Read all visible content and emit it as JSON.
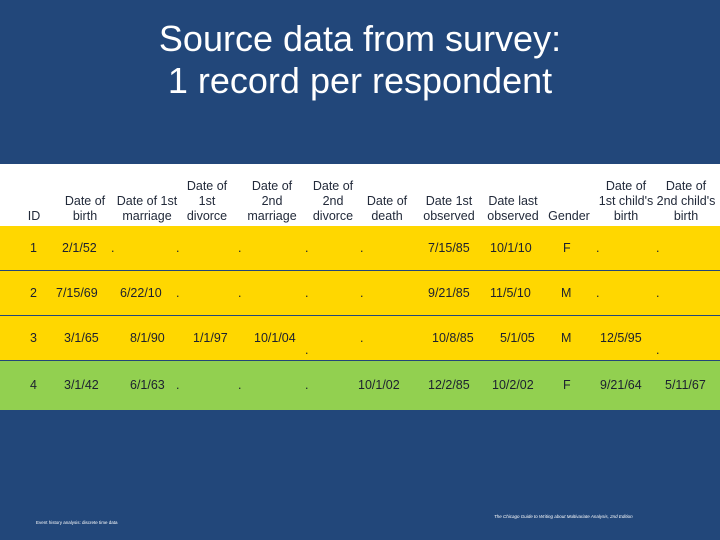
{
  "title": {
    "line1": "Source data from survey:",
    "line2": "1 record per respondent"
  },
  "table": {
    "headers": [
      "ID",
      "Date of\nbirth",
      "Date of 1st\nmarriage",
      "Date of\n1st\ndivorce",
      "Date of\n2nd\nmarriage",
      "Date of\n2nd\ndivorce",
      "Date of\ndeath",
      "Date 1st\nobserved",
      "Date last\nobserved",
      "Gender",
      "Date of\n1st child's\nbirth",
      "Date of\n2nd child's\nbirth"
    ],
    "rows": [
      [
        "1",
        "2/1/52",
        ".",
        ".",
        ".",
        ".",
        ".",
        "7/15/85",
        "10/1/10",
        "F",
        ".",
        "."
      ],
      [
        "2",
        "7/15/69",
        "6/22/10",
        ".",
        ".",
        ".",
        ".",
        "9/21/85",
        "11/5/10",
        "M",
        ".",
        "."
      ],
      [
        "3",
        "3/1/65",
        "8/1/90",
        "1/1/97",
        "10/1/04",
        ".",
        ".",
        "10/8/85",
        "5/1/05",
        "M",
        "12/5/95",
        "."
      ],
      [
        "4",
        "3/1/42",
        "6/1/63",
        ".",
        ".",
        ".",
        "10/1/02",
        "12/2/85",
        "10/2/02",
        "F",
        "9/21/64",
        "5/11/67"
      ]
    ]
  },
  "footer": {
    "left": "Event history analysis: discrete time data",
    "right": "The Chicago Guide to Writing about Multivariate Analysis, 2nd Edition"
  },
  "colors": {
    "background": "#22477a",
    "header": "#ffffff",
    "row_yellow": "#ffd700",
    "row_green": "#92d050"
  }
}
